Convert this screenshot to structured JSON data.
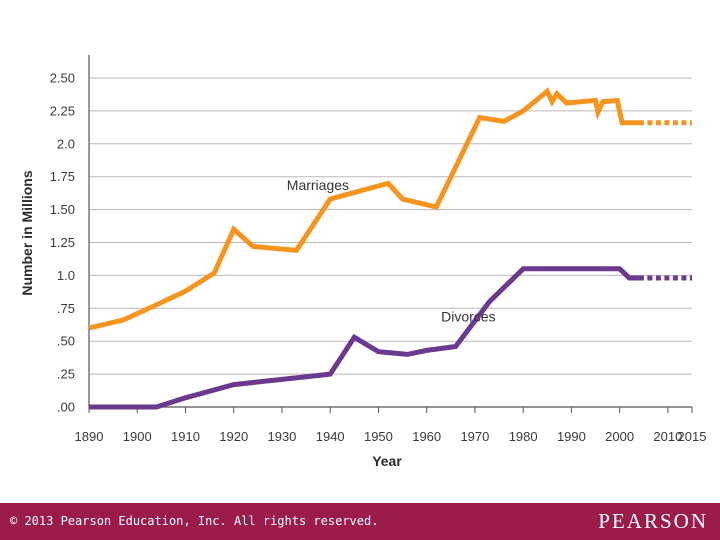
{
  "chart_data": {
    "type": "line",
    "xlabel": "Year",
    "ylabel": "Number in Millions",
    "xlim": [
      1890,
      2015
    ],
    "ylim": [
      0,
      2.5
    ],
    "x_ticks": [
      "1890",
      "1900",
      "1910",
      "1920",
      "1930",
      "1940",
      "1950",
      "1960",
      "1970",
      "1980",
      "1990",
      "2000",
      "2010",
      "2015"
    ],
    "x_tick_values": [
      1890,
      1900,
      1910,
      1920,
      1930,
      1940,
      1950,
      1960,
      1970,
      1980,
      1990,
      2000,
      2010,
      2015
    ],
    "y_ticks": [
      ".00",
      ".25",
      ".50",
      ".75",
      "1.0",
      "1.25",
      "1.50",
      "1.75",
      "2.0",
      "2.25",
      "2.50"
    ],
    "y_tick_values": [
      0,
      0.25,
      0.5,
      0.75,
      1.0,
      1.25,
      1.5,
      1.75,
      2.0,
      2.25,
      2.5
    ],
    "grid": true,
    "series": [
      {
        "name": "Marriages",
        "color": "#f7941d",
        "points": [
          [
            1890,
            0.6
          ],
          [
            1897,
            0.66
          ],
          [
            1903,
            0.76
          ],
          [
            1910,
            0.88
          ],
          [
            1916,
            1.02
          ],
          [
            1920,
            1.35
          ],
          [
            1924,
            1.22
          ],
          [
            1933,
            1.19
          ],
          [
            1940,
            1.58
          ],
          [
            1952,
            1.7
          ],
          [
            1955,
            1.58
          ],
          [
            1962,
            1.52
          ],
          [
            1971,
            2.2
          ],
          [
            1976,
            2.17
          ],
          [
            1980,
            2.25
          ],
          [
            1985,
            2.4
          ],
          [
            1986,
            2.32
          ],
          [
            1987,
            2.38
          ],
          [
            1989,
            2.31
          ],
          [
            1995,
            2.33
          ],
          [
            1995.5,
            2.24
          ],
          [
            1996.5,
            2.32
          ],
          [
            1999.5,
            2.33
          ],
          [
            2000.5,
            2.16
          ],
          [
            2004,
            2.16
          ]
        ],
        "projection": [
          [
            2004,
            2.16
          ],
          [
            2015,
            2.16
          ]
        ]
      },
      {
        "name": "Divorces",
        "color": "#6b3a8e",
        "points": [
          [
            1890,
            0.0
          ],
          [
            1904,
            0.0
          ],
          [
            1910,
            0.07
          ],
          [
            1920,
            0.17
          ],
          [
            1930,
            0.21
          ],
          [
            1940,
            0.25
          ],
          [
            1945,
            0.53
          ],
          [
            1950,
            0.42
          ],
          [
            1956,
            0.4
          ],
          [
            1960,
            0.43
          ],
          [
            1966,
            0.46
          ],
          [
            1973,
            0.8
          ],
          [
            1980,
            1.05
          ],
          [
            2000,
            1.05
          ],
          [
            2002,
            0.98
          ],
          [
            2004,
            0.98
          ]
        ],
        "projection": [
          [
            2004,
            0.98
          ],
          [
            2015,
            0.98
          ]
        ]
      }
    ],
    "annotations": [
      {
        "text": "Marriages",
        "x": 1931,
        "y": 1.65
      },
      {
        "text": "Divorces",
        "x": 1963,
        "y": 0.65
      }
    ]
  },
  "footer": {
    "copyright": "© 2013  Pearson Education, Inc. All rights reserved.",
    "brand": "PEARSON"
  }
}
